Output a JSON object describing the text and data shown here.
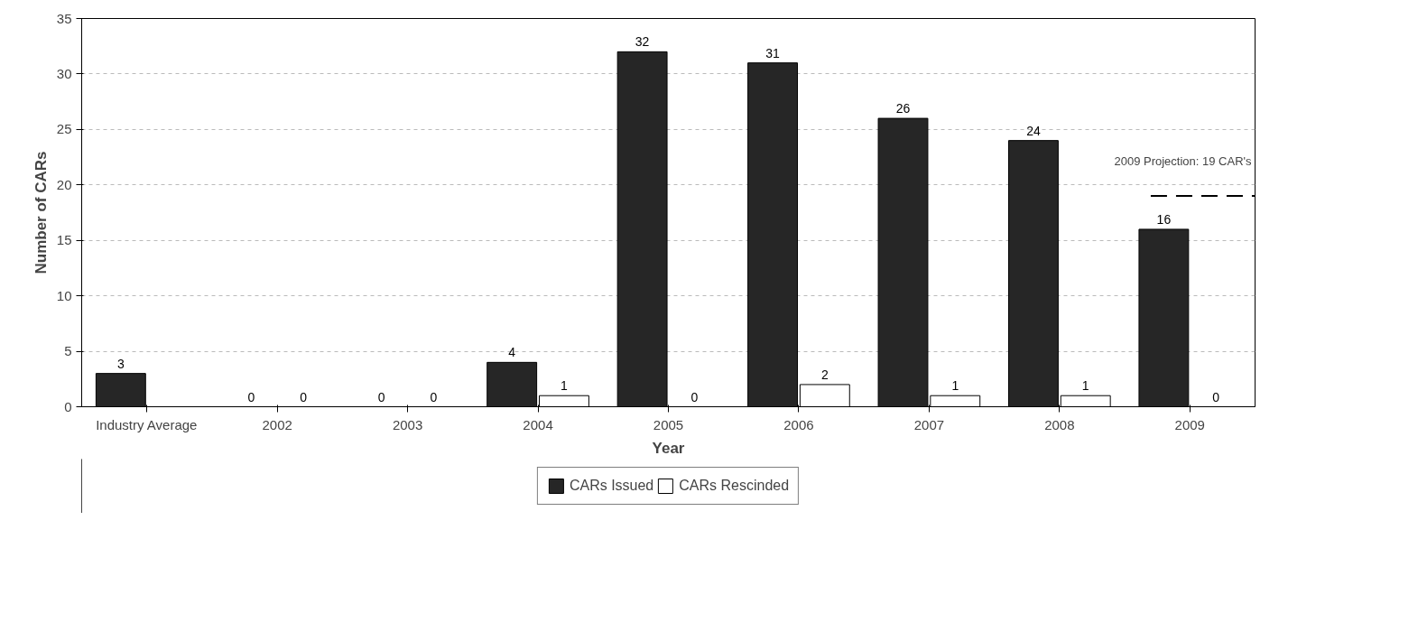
{
  "chart_data": {
    "type": "bar",
    "xlabel": "Year",
    "ylabel": "Number of CARs",
    "categories": [
      "Industry Average",
      "2002",
      "2003",
      "2004",
      "2005",
      "2006",
      "2007",
      "2008",
      "2009"
    ],
    "series": [
      {
        "name": "CARs Issued",
        "color": "#262626",
        "values": [
          3,
          0,
          0,
          4,
          32,
          31,
          26,
          24,
          16
        ]
      },
      {
        "name": "CARs Rescinded",
        "color": "#ffffff",
        "values": [
          null,
          0,
          0,
          1,
          0,
          2,
          1,
          1,
          0
        ]
      }
    ],
    "ylim": [
      0,
      35
    ],
    "yticks": [
      0,
      5,
      10,
      15,
      20,
      25,
      30,
      35
    ],
    "ref_lines": [
      {
        "axis": "y",
        "value": 19,
        "label": "2009 Projection: 19 CAR's",
        "line_style": "dashed",
        "color": "#000000"
      }
    ],
    "data_labels": true,
    "grid": "y",
    "legend": "bottom"
  }
}
